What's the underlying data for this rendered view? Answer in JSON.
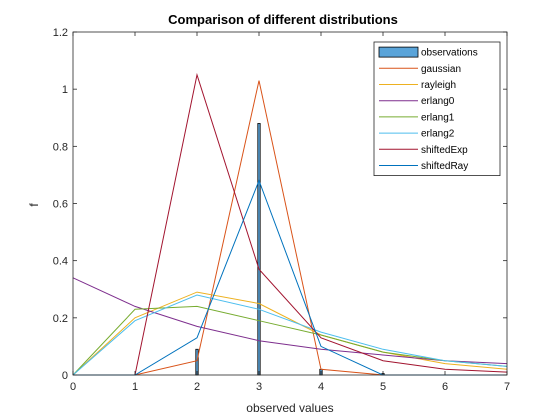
{
  "chart_data": {
    "type": "line",
    "title": "Comparison of different distributions",
    "xlabel": "observed values",
    "ylabel": "f",
    "xlim": [
      0,
      7
    ],
    "ylim": [
      0,
      1.2
    ],
    "xticks": [
      0,
      1,
      2,
      3,
      4,
      5,
      6,
      7
    ],
    "yticks": [
      0,
      0.2,
      0.4,
      0.6,
      0.8,
      1,
      1.2
    ],
    "xtick_labels": [
      "0",
      "1",
      "2",
      "3",
      "4",
      "5",
      "6",
      "7"
    ],
    "ytick_labels": [
      "0",
      "0.2",
      "0.4",
      "0.6",
      "0.8",
      "1",
      "1.2"
    ],
    "grid": false,
    "legend_position": "top-right",
    "bars": {
      "name": "observations",
      "color": "#5aa4d9",
      "x": [
        1,
        2,
        3,
        4,
        5,
        6,
        7
      ],
      "values": [
        0,
        0.09,
        0.88,
        0.02,
        0.005,
        0,
        0
      ]
    },
    "x": [
      0,
      1,
      2,
      3,
      4,
      5,
      6,
      7
    ],
    "series": [
      {
        "name": "gaussian",
        "color": "#d95319",
        "values": [
          0,
          0,
          0.05,
          1.03,
          0.02,
          0,
          0,
          0
        ]
      },
      {
        "name": "rayleigh",
        "color": "#edb120",
        "values": [
          0,
          0.2,
          0.29,
          0.25,
          0.14,
          0.08,
          0.04,
          0.02
        ]
      },
      {
        "name": "erlang0",
        "color": "#7e2f8e",
        "values": [
          0.34,
          0.24,
          0.17,
          0.12,
          0.09,
          0.07,
          0.05,
          0.04
        ]
      },
      {
        "name": "erlang1",
        "color": "#77ac30",
        "values": [
          0,
          0.23,
          0.24,
          0.19,
          0.14,
          0.08,
          0.05,
          0.03
        ]
      },
      {
        "name": "erlang2",
        "color": "#4dbeee",
        "values": [
          0,
          0.19,
          0.28,
          0.23,
          0.15,
          0.09,
          0.05,
          0.03
        ]
      },
      {
        "name": "shiftedExp",
        "color": "#a2142f",
        "values": [
          0,
          0,
          1.05,
          0.37,
          0.13,
          0.05,
          0.02,
          0.01
        ]
      },
      {
        "name": "shiftedRay",
        "color": "#0072bd",
        "values": [
          0,
          0,
          0.13,
          0.68,
          0.1,
          0,
          0,
          0
        ]
      }
    ]
  }
}
